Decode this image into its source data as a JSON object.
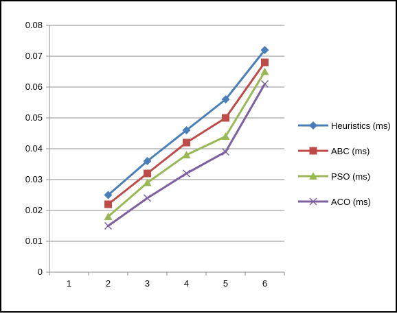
{
  "chart_data": {
    "type": "line",
    "categories": [
      "1",
      "2",
      "3",
      "4",
      "5",
      "6"
    ],
    "ylim": [
      0,
      0.08
    ],
    "y_ticks": [
      "0",
      "0.01",
      "0.02",
      "0.03",
      "0.04",
      "0.05",
      "0.06",
      "0.07",
      "0.08"
    ],
    "grid": "horizontal",
    "legend_position": "right",
    "series": [
      {
        "name": "Heuristics (ms)",
        "color": "#4A7EBB",
        "marker": "diamond",
        "values": [
          null,
          0.025,
          0.036,
          0.046,
          0.056,
          0.072
        ]
      },
      {
        "name": "ABC (ms)",
        "color": "#BE4B48",
        "marker": "square",
        "values": [
          null,
          0.022,
          0.032,
          0.042,
          0.05,
          0.068
        ]
      },
      {
        "name": "PSO (ms)",
        "color": "#98B954",
        "marker": "triangle",
        "values": [
          null,
          0.018,
          0.029,
          0.038,
          0.044,
          0.065
        ]
      },
      {
        "name": "ACO (ms)",
        "color": "#7D60A0",
        "marker": "x",
        "values": [
          null,
          0.015,
          0.024,
          0.032,
          0.039,
          0.061
        ]
      }
    ]
  }
}
